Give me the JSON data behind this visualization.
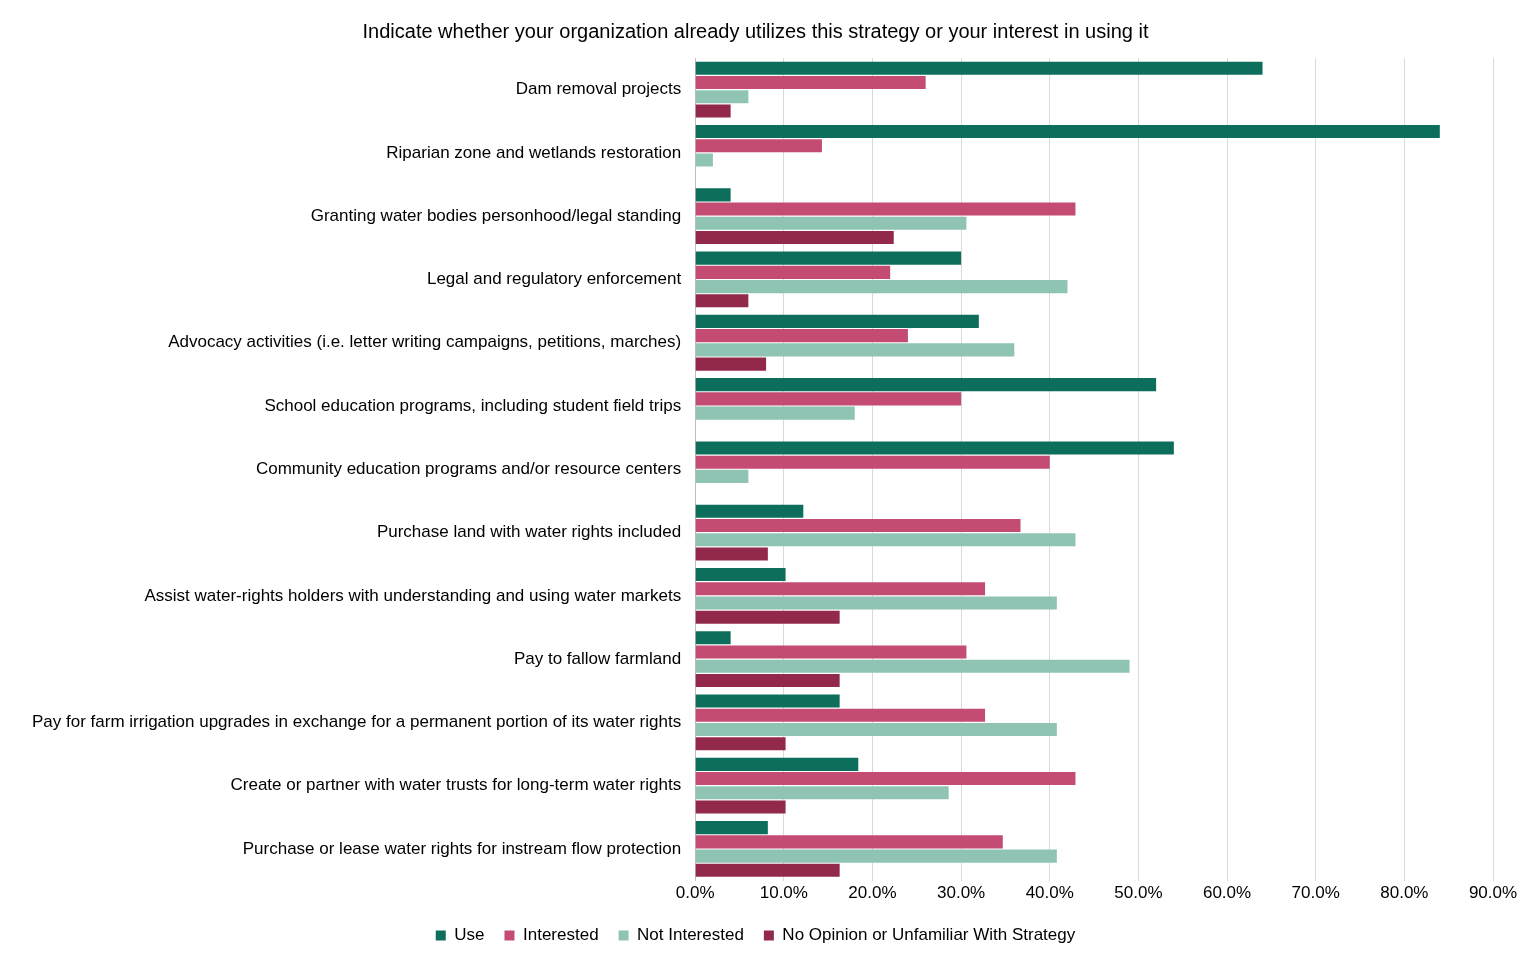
{
  "chart_data": {
    "type": "bar",
    "orientation": "horizontal",
    "title": "Indicate whether your organization already utilizes this strategy or your interest in using it",
    "categories": [
      "Dam removal projects",
      "Riparian zone and wetlands restoration",
      "Granting water bodies personhood/legal standing",
      "Legal and regulatory enforcement",
      "Advocacy activities (i.e. letter writing campaigns, petitions, marches)",
      "School education programs, including student field trips",
      "Community education programs and/or resource centers",
      "Purchase land with water rights included",
      "Assist water-rights holders with understanding and using water markets",
      "Pay to fallow farmland",
      "Pay for farm irrigation upgrades in exchange for a permanent portion of its water rights",
      "Create or partner with water trusts for long-term water rights",
      "Purchase or lease water rights for instream flow protection"
    ],
    "series": [
      {
        "name": "Use",
        "color": "#0e6e5c",
        "values": [
          64,
          84,
          4,
          30,
          32,
          52,
          54,
          12.2,
          10.2,
          4,
          16.3,
          18.4,
          8.2
        ]
      },
      {
        "name": "Interested",
        "color": "#c44b72",
        "values": [
          26,
          14.3,
          42.9,
          22,
          24,
          30,
          40,
          36.7,
          32.7,
          30.6,
          32.7,
          42.9,
          34.7
        ]
      },
      {
        "name": "Not Interested",
        "color": "#8fc4b4",
        "values": [
          6,
          2,
          30.6,
          42,
          36,
          18,
          6,
          42.9,
          40.8,
          49,
          40.8,
          28.6,
          40.8
        ]
      },
      {
        "name": "No Opinion or Unfamiliar With Strategy",
        "color": "#93294a",
        "values": [
          4,
          null,
          22.4,
          6,
          8,
          null,
          null,
          8.2,
          16.3,
          16.3,
          10.2,
          10.2,
          16.3
        ]
      }
    ],
    "xlim": [
      0,
      90
    ],
    "xticks": [
      {
        "value": 0,
        "label": "0.0%"
      },
      {
        "value": 10,
        "label": "10.0%"
      },
      {
        "value": 20,
        "label": "20.0%"
      },
      {
        "value": 30,
        "label": "30.0%"
      },
      {
        "value": 40,
        "label": "40.0%"
      },
      {
        "value": 50,
        "label": "50.0%"
      },
      {
        "value": 60,
        "label": "60.0%"
      },
      {
        "value": 70,
        "label": "70.0%"
      },
      {
        "value": 80,
        "label": "80.0%"
      },
      {
        "value": 90,
        "label": "90.0%"
      }
    ],
    "grid": "x",
    "legend": "bottom"
  }
}
